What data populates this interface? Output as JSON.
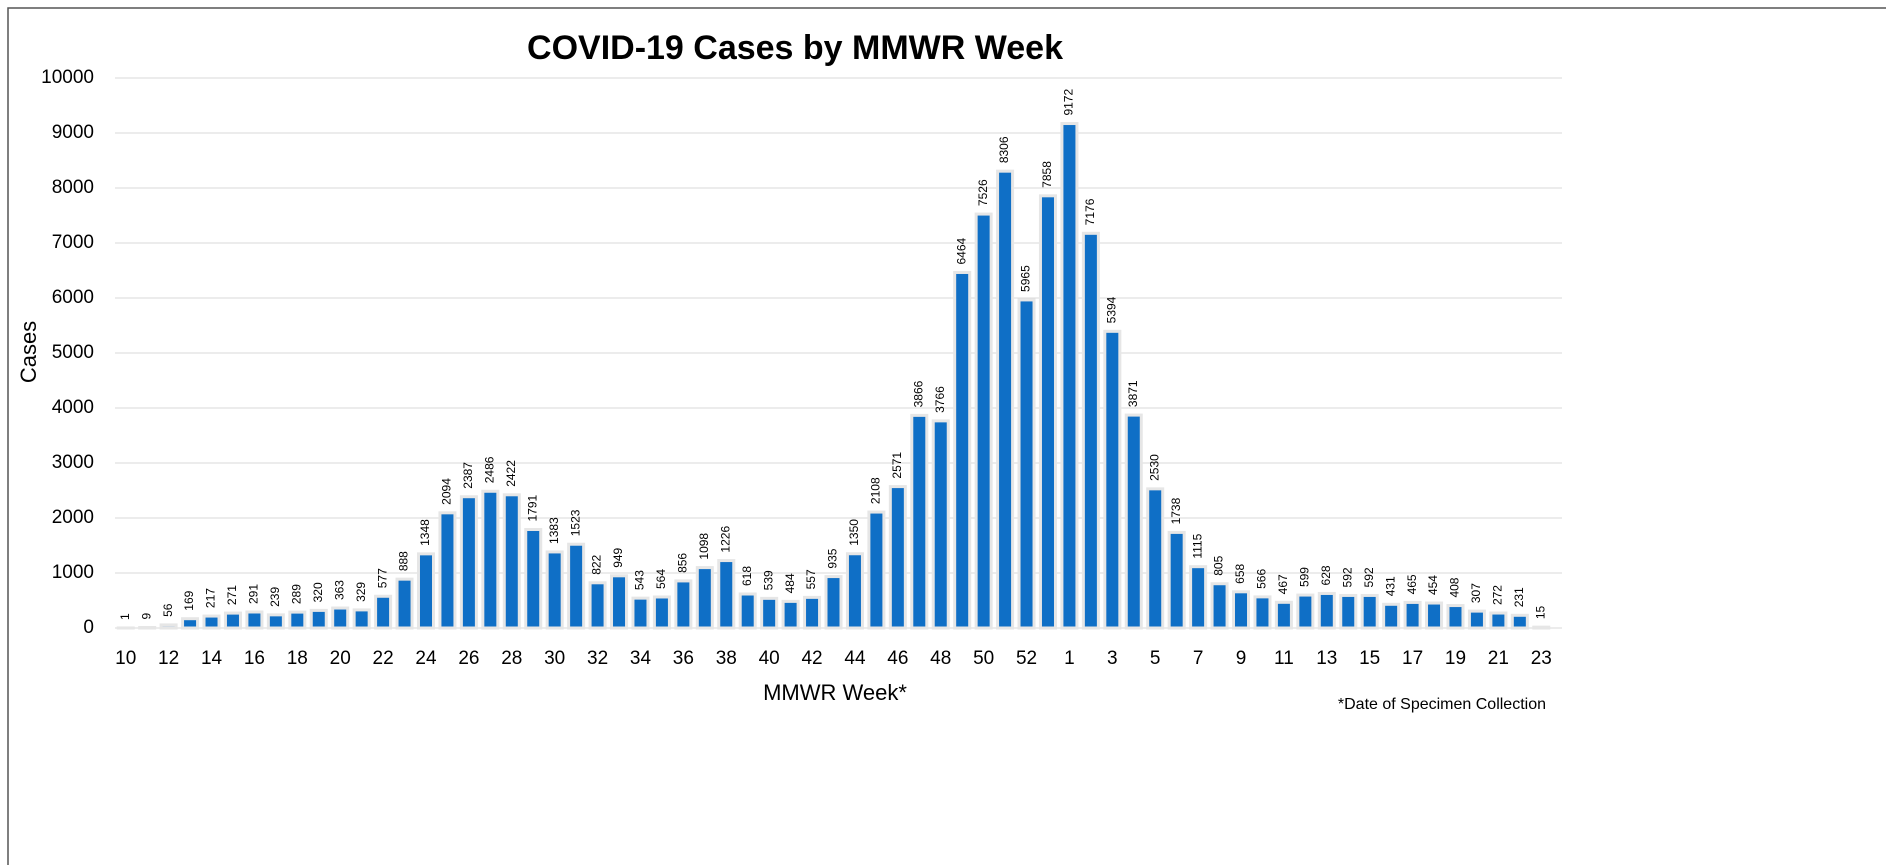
{
  "chart_data": {
    "type": "bar",
    "title": "COVID-19 Cases by MMWR Week",
    "y_label": "Cases",
    "x_label": "MMWR Week*",
    "note": "*Date of Specimen Collection",
    "categories": [
      "10",
      null,
      "12",
      null,
      "14",
      null,
      "16",
      null,
      "18",
      null,
      "20",
      null,
      "22",
      null,
      "24",
      null,
      "26",
      null,
      "28",
      null,
      "30",
      null,
      "32",
      null,
      "34",
      null,
      "36",
      null,
      "38",
      null,
      "40",
      null,
      "42",
      null,
      "44",
      null,
      "46",
      null,
      "48",
      null,
      "50",
      null,
      "52",
      null,
      "1",
      null,
      "3",
      null,
      "5",
      null,
      "7",
      null,
      "9",
      null,
      "11",
      null,
      "13",
      null,
      "15",
      null,
      "17",
      null,
      "19",
      null,
      "21",
      null,
      "23"
    ],
    "values": [
      1,
      9,
      56,
      169,
      217,
      271,
      291,
      239,
      289,
      320,
      363,
      329,
      577,
      888,
      1348,
      2094,
      2387,
      2486,
      2422,
      1791,
      1383,
      1523,
      822,
      949,
      543,
      564,
      856,
      1098,
      1226,
      618,
      539,
      484,
      557,
      935,
      1350,
      2108,
      2571,
      3866,
      3766,
      6464,
      7526,
      8306,
      5965,
      7858,
      9172,
      7176,
      5394,
      3871,
      2530,
      1738,
      1115,
      805,
      658,
      566,
      467,
      599,
      628,
      592,
      592,
      431,
      465,
      454,
      408,
      307,
      272,
      231,
      15
    ],
    "color": "#0f6fc6",
    "ylim": [
      0,
      10000
    ],
    "yticks": [
      0,
      1000,
      2000,
      3000,
      4000,
      5000,
      6000,
      7000,
      8000,
      9000,
      10000
    ],
    "grid": true
  }
}
